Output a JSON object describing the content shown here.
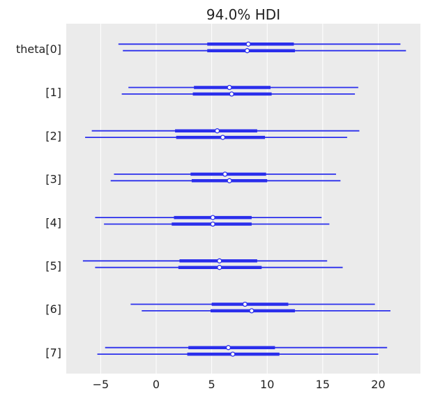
{
  "chart_data": {
    "type": "forest",
    "title": "94.0% HDI",
    "xlim": [
      -8.1,
      23.8
    ],
    "xticks": [
      -5,
      0,
      5,
      10,
      15,
      20
    ],
    "xtick_labels": [
      "−5",
      "0",
      "5",
      "10",
      "15",
      "20"
    ],
    "row_labels": [
      "theta[0]",
      "[1]",
      "[2]",
      "[3]",
      "[4]",
      "[5]",
      "[6]",
      "[7]"
    ],
    "grid": true,
    "colors": {
      "background": "#ebebeb",
      "grid": "#ffffff",
      "interval": "#2a2eec",
      "marker_fill": "#ffffff",
      "text": "#222222"
    },
    "chains": [
      {
        "rows": [
          {
            "hdi": [
              -3.4,
              22.0
            ],
            "iqr": [
              4.6,
              12.4
            ],
            "median": 8.3
          },
          {
            "hdi": [
              -2.5,
              18.2
            ],
            "iqr": [
              3.4,
              10.3
            ],
            "median": 6.6
          },
          {
            "hdi": [
              -5.8,
              18.3
            ],
            "iqr": [
              1.7,
              9.1
            ],
            "median": 5.5
          },
          {
            "hdi": [
              -3.8,
              16.2
            ],
            "iqr": [
              3.1,
              9.9
            ],
            "median": 6.2
          },
          {
            "hdi": [
              -5.5,
              14.9
            ],
            "iqr": [
              1.6,
              8.6
            ],
            "median": 5.1
          },
          {
            "hdi": [
              -6.6,
              15.4
            ],
            "iqr": [
              2.1,
              9.1
            ],
            "median": 5.7
          },
          {
            "hdi": [
              -2.3,
              19.7
            ],
            "iqr": [
              5.0,
              11.9
            ],
            "median": 8.0
          },
          {
            "hdi": [
              -4.6,
              20.8
            ],
            "iqr": [
              2.9,
              10.7
            ],
            "median": 6.5
          }
        ]
      },
      {
        "rows": [
          {
            "hdi": [
              -3.0,
              22.5
            ],
            "iqr": [
              4.6,
              12.5
            ],
            "median": 8.2
          },
          {
            "hdi": [
              -3.1,
              17.9
            ],
            "iqr": [
              3.3,
              10.4
            ],
            "median": 6.8
          },
          {
            "hdi": [
              -6.4,
              17.2
            ],
            "iqr": [
              1.8,
              9.8
            ],
            "median": 6.0
          },
          {
            "hdi": [
              -4.1,
              16.6
            ],
            "iqr": [
              3.2,
              10.0
            ],
            "median": 6.6
          },
          {
            "hdi": [
              -4.7,
              15.6
            ],
            "iqr": [
              1.4,
              8.6
            ],
            "median": 5.1
          },
          {
            "hdi": [
              -5.5,
              16.8
            ],
            "iqr": [
              2.0,
              9.5
            ],
            "median": 5.7
          },
          {
            "hdi": [
              -1.3,
              21.1
            ],
            "iqr": [
              4.9,
              12.5
            ],
            "median": 8.6
          },
          {
            "hdi": [
              -5.3,
              20.0
            ],
            "iqr": [
              2.8,
              11.1
            ],
            "median": 6.9
          }
        ]
      }
    ]
  }
}
